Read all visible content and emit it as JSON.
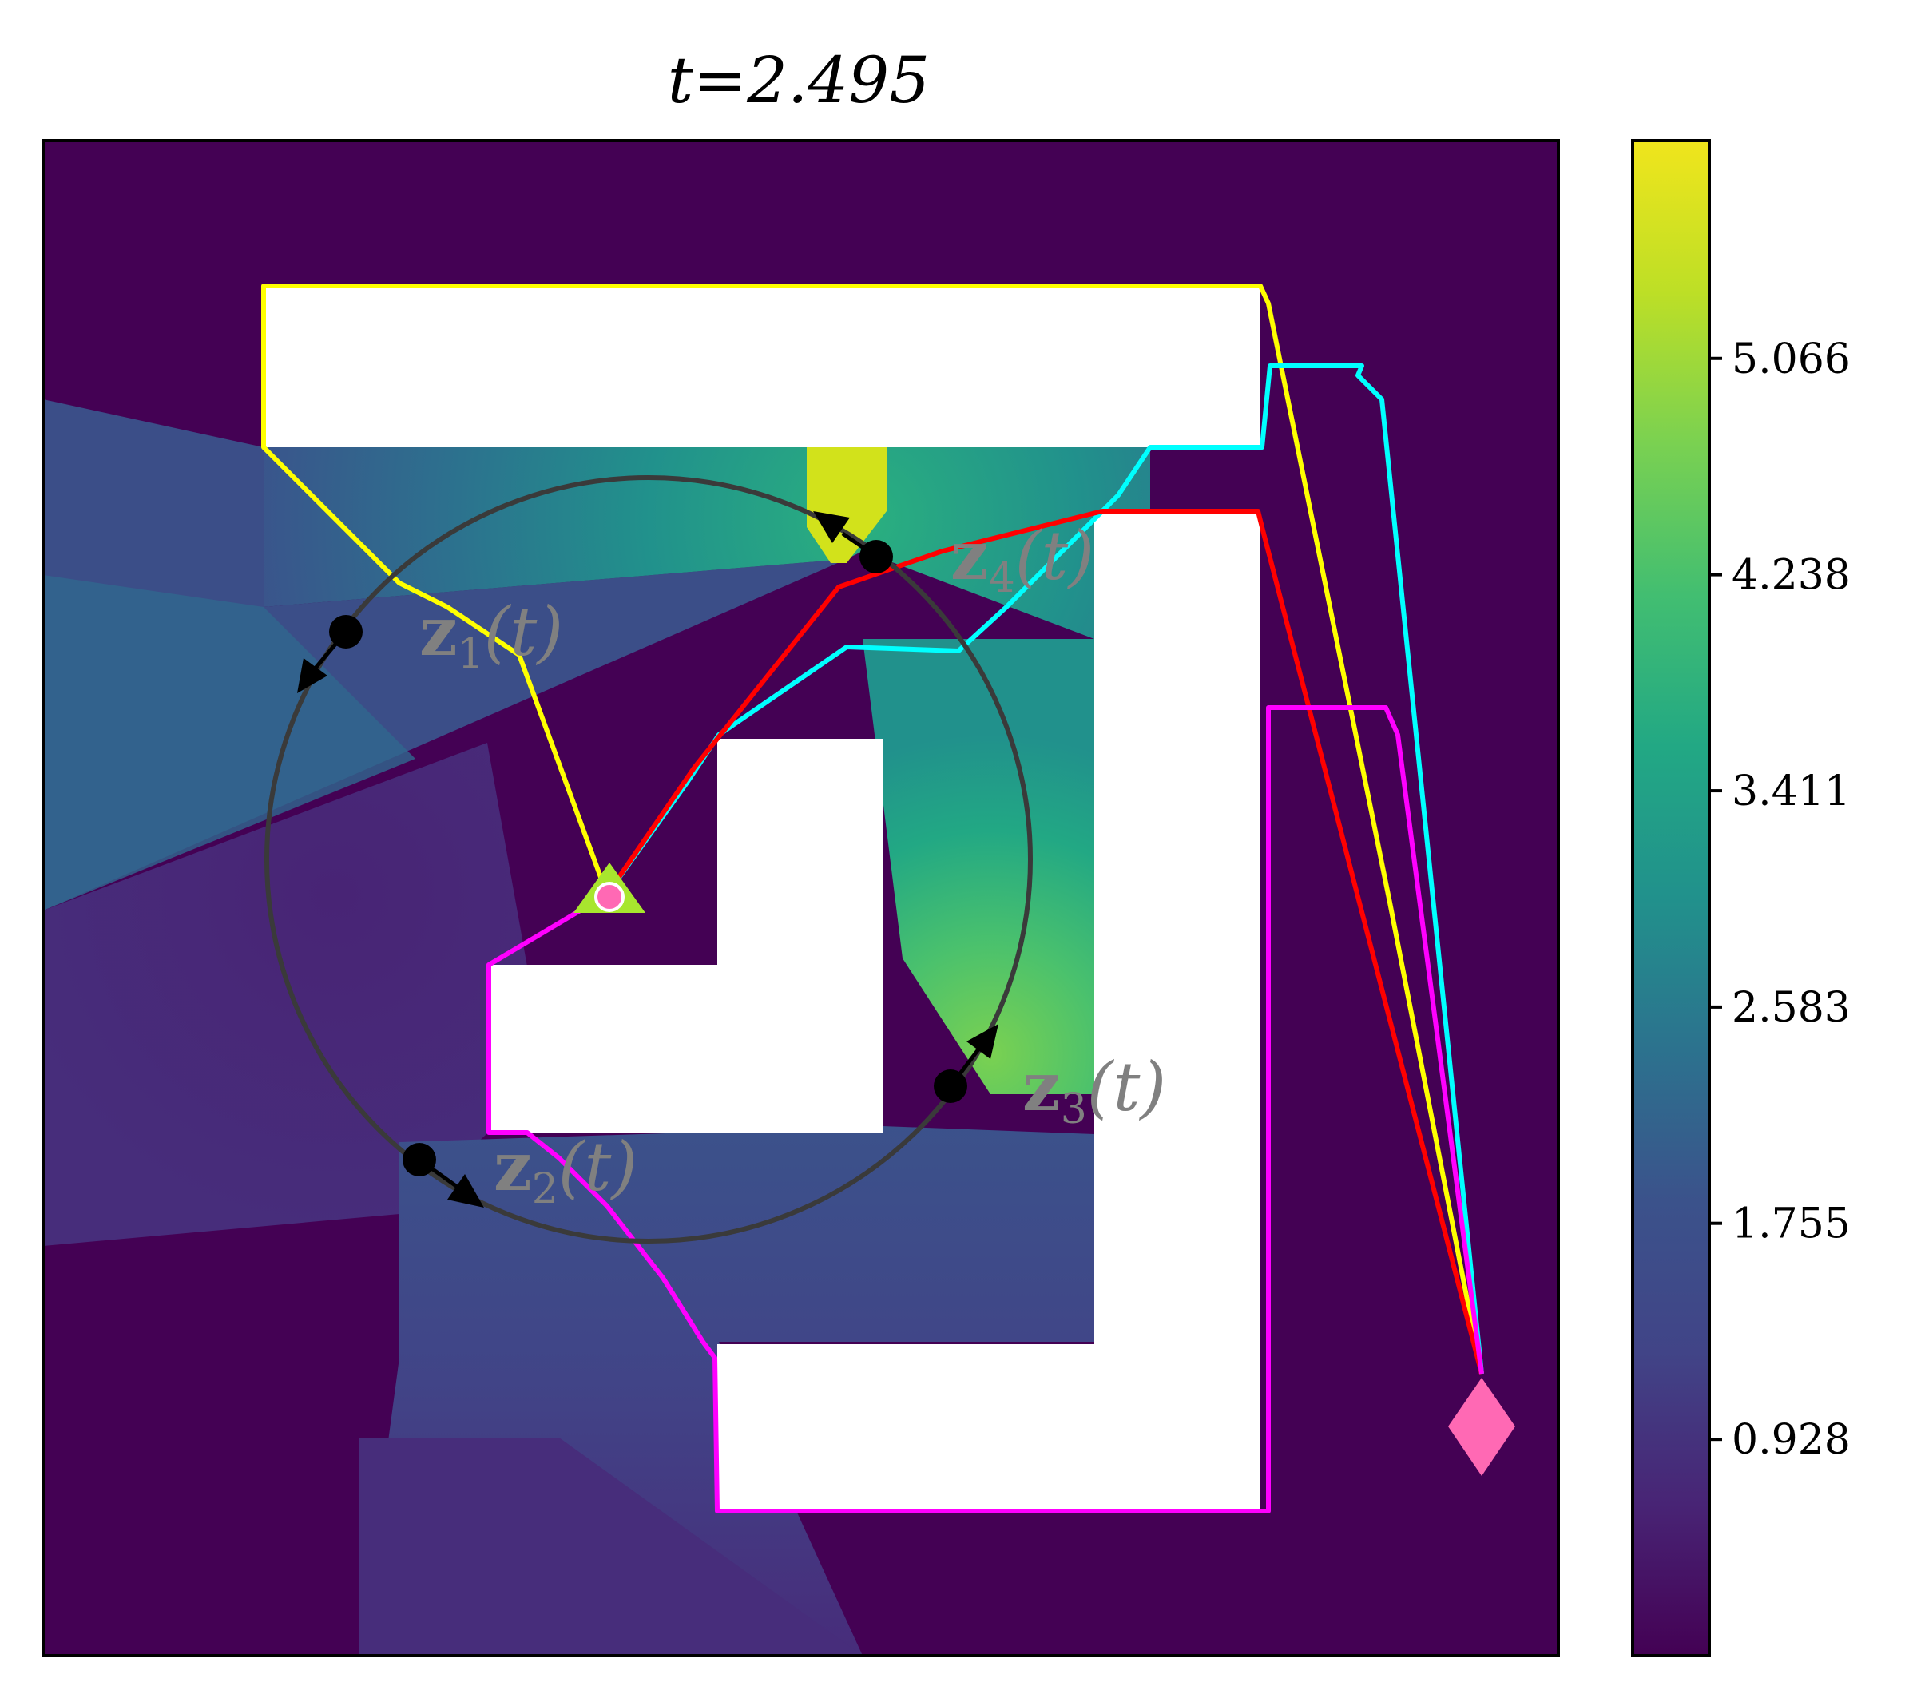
{
  "chart_data": {
    "type": "heatmap",
    "title": "t=2.495",
    "colorbar": {
      "ticks": [
        0.928,
        1.755,
        2.583,
        3.411,
        4.238,
        5.066
      ],
      "tick_labels": [
        "0.928",
        "1.755",
        "2.583",
        "3.411",
        "4.238",
        "5.066"
      ],
      "range": [
        0.1,
        5.9
      ],
      "levels": 20
    },
    "agents": [
      {
        "label_main": "z",
        "label_sub": "1",
        "label_tail": "(t)",
        "color": "#ffff00"
      },
      {
        "label_main": "z",
        "label_sub": "2",
        "label_tail": "(t)",
        "color": "#ff00ff"
      },
      {
        "label_main": "z",
        "label_sub": "3",
        "label_tail": "(t)",
        "color": "#ff0000"
      },
      {
        "label_main": "z",
        "label_sub": "4",
        "label_tail": "(t)",
        "color": "#00ffff"
      }
    ],
    "markers": {
      "start": {
        "shape": "triangle",
        "color": "#a8e62e"
      },
      "pursuer": {
        "shape": "dot",
        "color": "#ff69b4"
      },
      "goal": {
        "shape": "diamond",
        "color": "#ff69b4"
      }
    },
    "colors": {
      "background": "#440154",
      "obstacles": "#ffffff",
      "circle": "#3a3a3a",
      "label_text": "#808080"
    },
    "grid": false
  }
}
